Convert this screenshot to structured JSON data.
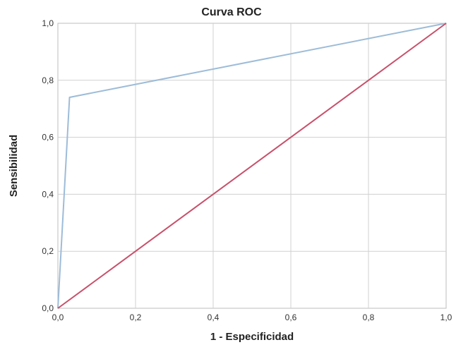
{
  "chart_data": {
    "type": "line",
    "title": "Curva ROC",
    "xlabel": "1 - Especificidad",
    "ylabel": "Sensibilidad",
    "xlim": [
      0,
      1
    ],
    "ylim": [
      0,
      1
    ],
    "grid": true,
    "legend": "none",
    "x_ticks": [
      "0,0",
      "0,2",
      "0,4",
      "0,6",
      "0,8",
      "1,0"
    ],
    "y_ticks": [
      "0,0",
      "0,2",
      "0,4",
      "0,6",
      "0,8",
      "1,0"
    ],
    "series": [
      {
        "color": "#9dbcd8",
        "points": [
          [
            0,
            0
          ],
          [
            0.03,
            0.74
          ],
          [
            1,
            1
          ]
        ]
      },
      {
        "color": "#c8506a",
        "points": [
          [
            0,
            0
          ],
          [
            1,
            1
          ]
        ]
      }
    ]
  }
}
